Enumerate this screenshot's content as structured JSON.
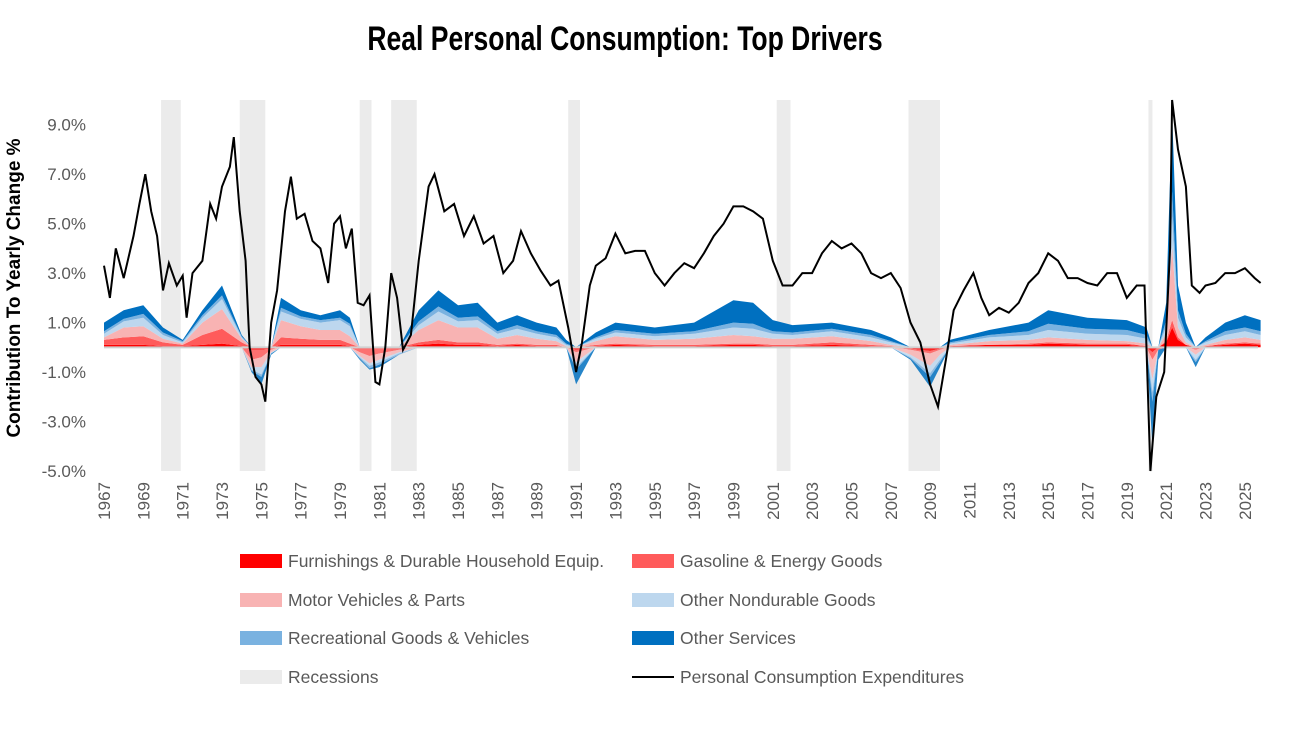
{
  "chart_data": {
    "type": "area",
    "title": "Real Personal Consumption: Top Drivers",
    "xlabel": "",
    "ylabel": "Contribution To Yearly Change %",
    "ylim": [
      -5,
      10
    ],
    "xlim": [
      1967,
      2025.9
    ],
    "y_ticks": [
      "-5.0%",
      "-3.0%",
      "-1.0%",
      "1.0%",
      "3.0%",
      "5.0%",
      "7.0%",
      "9.0%"
    ],
    "y_tick_values": [
      -5,
      -3,
      -1,
      1,
      3,
      5,
      7,
      9
    ],
    "x_ticks": [
      "1967",
      "1969",
      "1971",
      "1973",
      "1975",
      "1977",
      "1979",
      "1981",
      "1983",
      "1985",
      "1987",
      "1989",
      "1991",
      "1993",
      "1995",
      "1997",
      "1999",
      "2001",
      "2003",
      "2005",
      "2007",
      "2009",
      "2011",
      "2013",
      "2015",
      "2017",
      "2019",
      "2021",
      "2023",
      "2025"
    ],
    "grid": false,
    "legend_placement": "bottom",
    "recessions": [
      [
        1969.9,
        1970.9
      ],
      [
        1973.9,
        1975.2
      ],
      [
        1980.0,
        1980.6
      ],
      [
        1981.6,
        1982.9
      ],
      [
        1990.6,
        1991.2
      ],
      [
        2001.2,
        2001.9
      ],
      [
        2007.9,
        2009.5
      ],
      [
        2020.1,
        2020.3
      ]
    ],
    "x": [
      1967,
      1968,
      1969,
      1970,
      1971,
      1972,
      1973,
      1974,
      1974.5,
      1975,
      1975.5,
      1976,
      1977,
      1978,
      1979,
      1979.5,
      1980,
      1980.5,
      1981,
      1982,
      1983,
      1984,
      1985,
      1986,
      1987,
      1988,
      1989,
      1990,
      1990.5,
      1991,
      1992,
      1993,
      1995,
      1997,
      1999,
      2000,
      2001,
      2002,
      2004,
      2006,
      2007,
      2008,
      2009,
      2009.5,
      2010,
      2012,
      2014,
      2015,
      2017,
      2019,
      2020,
      2020.3,
      2020.6,
      2021,
      2021.3,
      2021.6,
      2022,
      2022.5,
      2023,
      2024,
      2025,
      2025.8
    ],
    "series": [
      {
        "name": "Furnishings & Durable Household Equip.",
        "color": "#ff0000",
        "values": [
          0.1,
          0.1,
          0.1,
          0.05,
          0.05,
          0.1,
          0.15,
          0.05,
          -0.1,
          -0.1,
          -0.05,
          0.1,
          0.1,
          0.1,
          0.1,
          0.05,
          -0.05,
          -0.05,
          -0.05,
          -0.05,
          0.1,
          0.15,
          0.1,
          0.1,
          0.05,
          0.1,
          0.05,
          0.05,
          0,
          -0.1,
          0.05,
          0.1,
          0.05,
          0.05,
          0.1,
          0.1,
          0.05,
          0.05,
          0.1,
          0.05,
          0.05,
          -0.05,
          -0.15,
          -0.05,
          0.05,
          0.1,
          0.1,
          0.15,
          0.1,
          0.1,
          0.05,
          -0.2,
          0,
          0.2,
          0.8,
          0.3,
          0.1,
          -0.05,
          0.05,
          0.1,
          0.15,
          0.1
        ]
      },
      {
        "name": "Gasoline & Energy Goods",
        "color": "#ff5b5b",
        "values": [
          0.2,
          0.3,
          0.35,
          0.15,
          0.05,
          0.4,
          0.6,
          0.15,
          -0.4,
          -0.3,
          -0.05,
          0.3,
          0.25,
          0.2,
          0.2,
          0.1,
          -0.15,
          -0.3,
          -0.2,
          -0.05,
          0.1,
          0.15,
          0.1,
          0.1,
          0.05,
          0.05,
          0.05,
          0.05,
          0,
          -0.1,
          0.05,
          0.05,
          0.05,
          0.05,
          0.05,
          0.05,
          0.05,
          0.05,
          0.1,
          0.05,
          0,
          -0.05,
          -0.1,
          -0.05,
          0,
          0,
          0.05,
          0.05,
          0.05,
          0.05,
          0,
          -0.3,
          -0.1,
          0.05,
          0.3,
          0.1,
          0,
          -0.05,
          0,
          0.05,
          0.05,
          0.05
        ]
      },
      {
        "name": "Motor Vehicles & Parts",
        "color": "#f8b3b3",
        "values": [
          0.1,
          0.4,
          0.4,
          0.15,
          0.05,
          0.5,
          0.8,
          0.15,
          -0.3,
          -0.4,
          -0.1,
          0.7,
          0.5,
          0.4,
          0.4,
          0.3,
          -0.15,
          -0.3,
          -0.25,
          -0.1,
          0.5,
          0.8,
          0.6,
          0.6,
          0.25,
          0.35,
          0.25,
          0.15,
          0.05,
          -0.4,
          0.15,
          0.3,
          0.2,
          0.25,
          0.35,
          0.3,
          0.25,
          0.25,
          0.25,
          0.15,
          0.05,
          -0.2,
          -0.5,
          -0.2,
          0.05,
          0.15,
          0.15,
          0.2,
          0.15,
          0.1,
          0.1,
          -0.8,
          0,
          0.3,
          3.0,
          0.4,
          0.1,
          -0.2,
          0.05,
          0.15,
          0.2,
          0.15
        ]
      },
      {
        "name": "Other Nondurable Goods",
        "color": "#bdd7ee",
        "values": [
          0.15,
          0.25,
          0.35,
          0.15,
          0.05,
          0.2,
          0.4,
          0.05,
          -0.1,
          -0.3,
          -0.05,
          0.35,
          0.3,
          0.3,
          0.4,
          0.4,
          -0.05,
          -0.1,
          -0.1,
          -0.05,
          0.2,
          0.35,
          0.25,
          0.3,
          0.2,
          0.25,
          0.2,
          0.15,
          0.05,
          -0.2,
          0.1,
          0.15,
          0.15,
          0.2,
          0.3,
          0.3,
          0.2,
          0.15,
          0.2,
          0.15,
          0.1,
          -0.1,
          -0.3,
          -0.2,
          0.05,
          0.15,
          0.2,
          0.3,
          0.25,
          0.25,
          0.2,
          -0.5,
          0,
          0.3,
          1.2,
          0.4,
          0.2,
          -0.2,
          0.1,
          0.2,
          0.25,
          0.2
        ]
      },
      {
        "name": "Recreational Goods & Vehicles",
        "color": "#7ab2e0",
        "values": [
          0.1,
          0.1,
          0.15,
          0.1,
          0.05,
          0.1,
          0.15,
          0.05,
          -0.05,
          -0.1,
          0,
          0.15,
          0.1,
          0.1,
          0.1,
          0.1,
          -0.05,
          -0.1,
          -0.1,
          -0.05,
          0.15,
          0.2,
          0.15,
          0.15,
          0.1,
          0.15,
          0.1,
          0.1,
          0.05,
          -0.1,
          0.05,
          0.1,
          0.1,
          0.1,
          0.2,
          0.2,
          0.1,
          0.1,
          0.1,
          0.1,
          0.05,
          -0.05,
          -0.15,
          -0.1,
          0.05,
          0.1,
          0.15,
          0.25,
          0.2,
          0.2,
          0.15,
          -0.4,
          0,
          0.25,
          1.0,
          0.3,
          0.15,
          -0.1,
          0.05,
          0.15,
          0.15,
          0.15
        ]
      },
      {
        "name": "Other Services",
        "color": "#0070c0",
        "values": [
          0.35,
          0.35,
          0.35,
          0.2,
          0.05,
          0.2,
          0.4,
          0.05,
          -0.05,
          -0.3,
          -0.05,
          0.4,
          0.25,
          0.2,
          0.3,
          0.25,
          -0.05,
          -0.05,
          -0.1,
          0,
          0.45,
          0.65,
          0.5,
          0.55,
          0.35,
          0.4,
          0.35,
          0.3,
          0.15,
          -0.6,
          0.2,
          0.3,
          0.25,
          0.35,
          0.9,
          0.85,
          0.45,
          0.3,
          0.25,
          0.2,
          0.15,
          -0.05,
          -0.4,
          -0.2,
          0.1,
          0.2,
          0.35,
          0.55,
          0.45,
          0.4,
          0.3,
          -1.8,
          -0.4,
          0.7,
          3.2,
          1.0,
          0.45,
          -0.2,
          0.15,
          0.35,
          0.5,
          0.45
        ]
      }
    ],
    "line": {
      "name": "Personal Consumption Expenditures",
      "color": "#000000",
      "x": [
        1967.0,
        1967.3,
        1967.6,
        1968.0,
        1968.5,
        1968.8,
        1969.1,
        1969.4,
        1969.7,
        1970.0,
        1970.3,
        1970.7,
        1971.0,
        1971.2,
        1971.5,
        1972.0,
        1972.4,
        1972.7,
        1973.0,
        1973.4,
        1973.6,
        1973.9,
        1974.2,
        1974.4,
        1974.7,
        1975.0,
        1975.2,
        1975.5,
        1975.8,
        1976.2,
        1976.5,
        1976.8,
        1977.2,
        1977.6,
        1978.0,
        1978.4,
        1978.7,
        1979.0,
        1979.3,
        1979.6,
        1979.9,
        1980.2,
        1980.5,
        1980.8,
        1981.0,
        1981.3,
        1981.6,
        1981.9,
        1982.2,
        1982.6,
        1983.0,
        1983.5,
        1983.8,
        1984.3,
        1984.8,
        1985.3,
        1985.8,
        1986.3,
        1986.8,
        1987.3,
        1987.8,
        1988.2,
        1988.7,
        1989.2,
        1989.7,
        1990.1,
        1990.6,
        1991.0,
        1991.3,
        1991.7,
        1992.0,
        1992.5,
        1993.0,
        1993.5,
        1994.0,
        1994.5,
        1995.0,
        1995.5,
        1996.0,
        1996.5,
        1997.0,
        1997.5,
        1998.0,
        1998.5,
        1999.0,
        1999.5,
        2000.0,
        2000.5,
        2001.0,
        2001.5,
        2002.0,
        2002.5,
        2003.0,
        2003.5,
        2004.0,
        2004.5,
        2005.0,
        2005.5,
        2006.0,
        2006.5,
        2007.0,
        2007.5,
        2008.0,
        2008.5,
        2009.0,
        2009.4,
        2009.8,
        2010.2,
        2010.7,
        2011.2,
        2011.6,
        2012.0,
        2012.5,
        2013.0,
        2013.5,
        2014.0,
        2014.5,
        2015.0,
        2015.5,
        2016.0,
        2016.5,
        2017.0,
        2017.5,
        2018.0,
        2018.5,
        2019.0,
        2019.5,
        2019.9,
        2020.2,
        2020.5,
        2020.9,
        2021.2,
        2021.3,
        2021.6,
        2022.0,
        2022.3,
        2022.7,
        2023.0,
        2023.5,
        2024.0,
        2024.5,
        2025.0,
        2025.5,
        2025.8
      ],
      "values": [
        3.3,
        2.0,
        4.0,
        2.8,
        4.5,
        5.8,
        7.0,
        5.5,
        4.5,
        2.3,
        3.4,
        2.5,
        2.9,
        1.2,
        3.0,
        3.5,
        5.8,
        5.2,
        6.5,
        7.3,
        8.5,
        5.5,
        3.5,
        0,
        -1.2,
        -1.5,
        -2.2,
        1.0,
        2.3,
        5.5,
        6.9,
        5.2,
        5.4,
        4.3,
        4.0,
        2.6,
        5.0,
        5.3,
        4.0,
        4.8,
        1.8,
        1.7,
        2.1,
        -1.4,
        -1.5,
        0,
        3.0,
        2.0,
        -0.1,
        0.5,
        3.5,
        6.5,
        7.0,
        5.5,
        5.8,
        4.5,
        5.3,
        4.2,
        4.5,
        3.0,
        3.5,
        4.7,
        3.8,
        3.1,
        2.5,
        2.7,
        0.8,
        -1.0,
        0.2,
        2.5,
        3.3,
        3.6,
        4.6,
        3.8,
        3.9,
        3.9,
        3.0,
        2.5,
        3.0,
        3.4,
        3.2,
        3.8,
        4.5,
        5.0,
        5.7,
        5.7,
        5.5,
        5.2,
        3.5,
        2.5,
        2.5,
        3.0,
        3.0,
        3.8,
        4.3,
        4.0,
        4.2,
        3.8,
        3.0,
        2.8,
        3.0,
        2.4,
        1.0,
        0.2,
        -1.5,
        -2.4,
        -0.5,
        1.5,
        2.3,
        3.0,
        2.0,
        1.3,
        1.6,
        1.4,
        1.8,
        2.6,
        3.0,
        3.8,
        3.5,
        2.8,
        2.8,
        2.6,
        2.5,
        3.0,
        3.0,
        2.0,
        2.5,
        2.5,
        -5.0,
        -2.0,
        -1.0,
        4.0,
        10.0,
        8.0,
        6.5,
        2.5,
        2.2,
        2.5,
        2.6,
        3.0,
        3.0,
        3.2,
        2.8,
        2.6
      ]
    },
    "legend": [
      {
        "label": "Furnishings & Durable Household Equip.",
        "color": "#ff0000",
        "kind": "area"
      },
      {
        "label": "Gasoline & Energy Goods",
        "color": "#ff5b5b",
        "kind": "area"
      },
      {
        "label": "Motor Vehicles & Parts",
        "color": "#f8b3b3",
        "kind": "area"
      },
      {
        "label": "Other Nondurable Goods",
        "color": "#bdd7ee",
        "kind": "area"
      },
      {
        "label": "Recreational Goods & Vehicles",
        "color": "#7ab2e0",
        "kind": "area"
      },
      {
        "label": "Other Services",
        "color": "#0070c0",
        "kind": "area"
      },
      {
        "label": "Recessions",
        "color": "#ebebeb",
        "kind": "area"
      },
      {
        "label": "Personal Consumption Expenditures",
        "color": "#000000",
        "kind": "line"
      }
    ]
  }
}
